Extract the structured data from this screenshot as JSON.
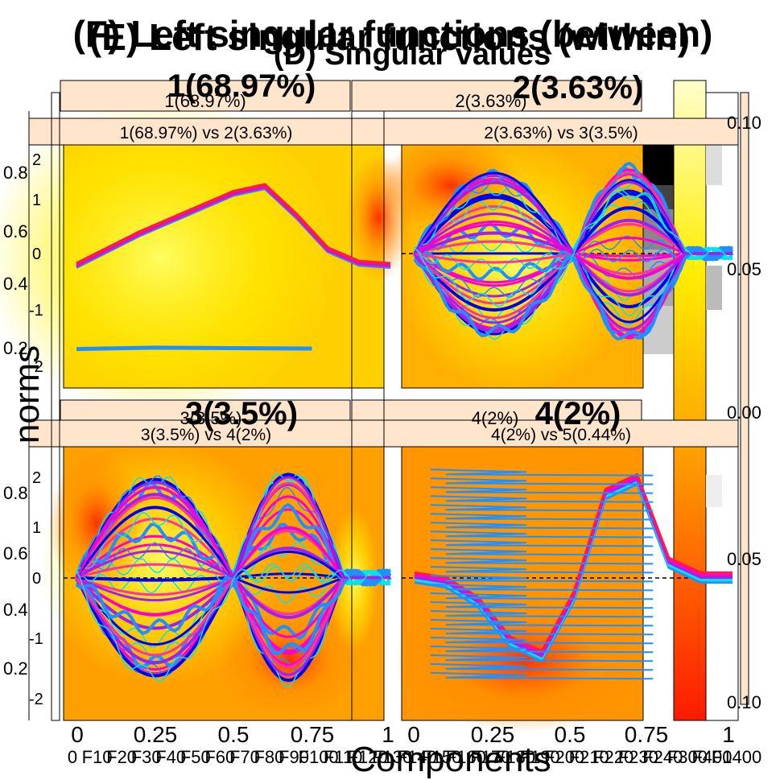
{
  "titles": {
    "left_functions": "(E) Left singular functions (within)",
    "right_functions": "(F) Left singular functions (between)",
    "singular_values": "(D) Singular values"
  },
  "axis_labels": {
    "x": "Components",
    "y": "norms"
  },
  "panels": [
    {
      "title": "1(68.97%)",
      "subtitle": "1(68.97%)",
      "strip": "1(68.97%) vs 2(3.63%)"
    },
    {
      "title": "2(3.63%)",
      "subtitle": "2(3.63%)",
      "strip": "2(3.63%) vs 3(3.5%)"
    },
    {
      "title": "3(3.5%)",
      "subtitle": "3(3.5%)",
      "strip": "3(3.5%) vs 4(2%)"
    },
    {
      "title": "4(2%)",
      "subtitle": "4(2%)",
      "strip": "4(2%) vs 5(0.44%)"
    }
  ],
  "colorbar_ticks": [
    "0.10",
    "0.05",
    "0.00",
    "0.05",
    "0.10"
  ],
  "left_y_ticks": [
    "0.8",
    "0.6",
    "0.4",
    "0.2",
    "0.8",
    "0.6",
    "0.4",
    "0.2"
  ],
  "inner_y_ticks": [
    "2",
    "1",
    "0",
    "-1",
    "-2",
    "2",
    "1",
    "0",
    "-1",
    "-2"
  ],
  "x_ticks": [
    "0",
    "0.25",
    "0.5",
    "0.75",
    "1",
    "0",
    "0.25",
    "0.5",
    "0.75",
    "1"
  ],
  "feature_ticks": [
    "0",
    "F10",
    "F20",
    "F30",
    "F40",
    "F50",
    "F60",
    "F70",
    "F80",
    "F90",
    "F100",
    "F110",
    "F120",
    "F130",
    "F140",
    "F150",
    "F160",
    "F170",
    "F180",
    "F190",
    "F200",
    "F210",
    "F220",
    "F230",
    "F240",
    "F300",
    "F400",
    "F1400"
  ],
  "chart_data": [
    {
      "type": "line",
      "panel": "1(68.97%) vs 2(3.63%)",
      "x_range": [
        0,
        1
      ],
      "y_range": [
        -2.5,
        2.5
      ],
      "series": [
        {
          "x": [
            0,
            0.1,
            0.2,
            0.3,
            0.4,
            0.5,
            0.6,
            0.7,
            0.8,
            0.9,
            1.0
          ],
          "y": [
            0.0,
            0.35,
            0.7,
            1.0,
            1.3,
            1.6,
            1.75,
            1.1,
            0.35,
            0.05,
            0.0
          ]
        },
        {
          "x": [
            0,
            0.25,
            0.5,
            0.75
          ],
          "y": [
            -1.85,
            -1.82,
            -1.83,
            -1.84
          ]
        }
      ]
    },
    {
      "type": "line",
      "panel": "2(3.63%) vs 3(3.5%)",
      "x_range": [
        0,
        1
      ],
      "y_range": [
        -2.5,
        2.5
      ],
      "series_count": 40,
      "amplitude_range": [
        -2.2,
        2.2
      ],
      "nodes": [
        0.0,
        0.5,
        1.0
      ]
    },
    {
      "type": "line",
      "panel": "3(3.5%) vs 4(2%)",
      "x_range": [
        0,
        1
      ],
      "y_range": [
        -2.5,
        2.5
      ],
      "series_count": 40,
      "amplitude_range": [
        -2.2,
        2.2
      ],
      "nodes": [
        0.0,
        0.5,
        1.0
      ]
    },
    {
      "type": "line",
      "panel": "4(2%) vs 5(0.44%)",
      "x_range": [
        0,
        1
      ],
      "y_range": [
        -2.5,
        2.5
      ],
      "series": [
        {
          "x": [
            0,
            0.1,
            0.2,
            0.3,
            0.4,
            0.5,
            0.6,
            0.7,
            0.8,
            0.9,
            1.0
          ],
          "y": [
            0.0,
            -0.1,
            -0.5,
            -1.3,
            -1.6,
            -0.4,
            1.7,
            2.0,
            0.3,
            0.0,
            0.0
          ]
        }
      ]
    }
  ],
  "colors": {
    "strip": "#ffe5cc",
    "heat_low": "#fff200",
    "heat_mid": "#ff9a00",
    "heat_high": "#ff2a00",
    "line_blue": "#1e90ff",
    "line_magenta": "#ff00cc",
    "line_violet": "#a020f0",
    "line_cyan": "#00e5ee"
  }
}
